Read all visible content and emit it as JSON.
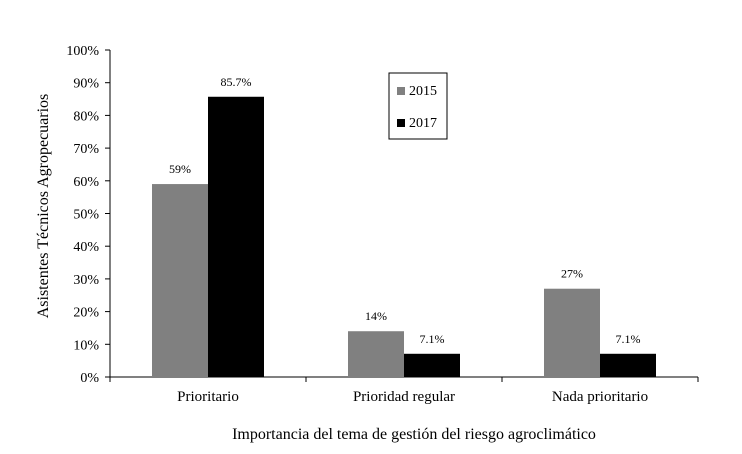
{
  "chart_data": {
    "type": "bar",
    "categories": [
      "Prioritario",
      "Prioridad regular",
      "Nada prioritario"
    ],
    "series": [
      {
        "name": "2015",
        "values": [
          59,
          14,
          27
        ],
        "labels": [
          "59%",
          "14%",
          "27%"
        ],
        "color": "#808080"
      },
      {
        "name": "2017",
        "values": [
          85.7,
          7.1,
          7.1
        ],
        "labels": [
          "85.7%",
          "7.1%",
          "7.1%"
        ],
        "color": "#000000"
      }
    ],
    "ylim": [
      0,
      100
    ],
    "yticks": [
      0,
      10,
      20,
      30,
      40,
      50,
      60,
      70,
      80,
      90,
      100
    ],
    "ytick_labels": [
      "0%",
      "10%",
      "20%",
      "30%",
      "40%",
      "50%",
      "60%",
      "70%",
      "80%",
      "90%",
      "100%"
    ],
    "xlabel": "Importancia del tema de gestión del riesgo agroclimático",
    "ylabel": "Asistentes Técnicos Agropecuarios",
    "grid": false,
    "legend": "top-center"
  }
}
